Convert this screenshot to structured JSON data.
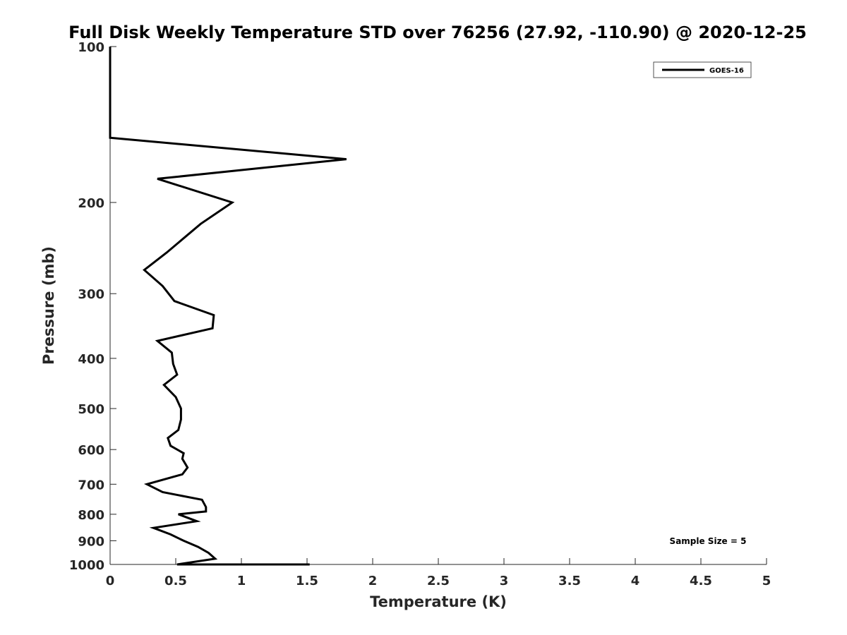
{
  "chart_data": {
    "type": "line",
    "title": "Full Disk Weekly Temperature STD over 76256 (27.92, -110.90) @ 2020-12-25",
    "xlabel": "Temperature (K)",
    "ylabel": "Pressure (mb)",
    "xlim": [
      0,
      5
    ],
    "ylim": [
      100,
      1000
    ],
    "y_scale": "log",
    "y_reversed": true,
    "x_ticks": [
      "0",
      "0.5",
      "1",
      "1.5",
      "2",
      "2.5",
      "3",
      "3.5",
      "4",
      "4.5",
      "5"
    ],
    "y_ticks": [
      "100",
      "200",
      "300",
      "400",
      "500",
      "600",
      "700",
      "800",
      "900",
      "1000"
    ],
    "grid": false,
    "legend_position": "top-right",
    "annotation": "Sample Size = 5",
    "series": [
      {
        "name": "GOES-16",
        "color": "#000000",
        "x": [
          0.0,
          0.0,
          0.0,
          1.8,
          0.36,
          0.93,
          0.69,
          0.43,
          0.26,
          0.4,
          0.49,
          0.79,
          0.78,
          0.36,
          0.47,
          0.48,
          0.51,
          0.41,
          0.5,
          0.54,
          0.54,
          0.52,
          0.44,
          0.46,
          0.56,
          0.55,
          0.59,
          0.55,
          0.28,
          0.4,
          0.7,
          0.73,
          0.73,
          0.52,
          0.66,
          0.33,
          0.46,
          0.56,
          0.67,
          0.75,
          0.8,
          0.51,
          1.22,
          1.52
        ],
        "y": [
          100,
          120,
          150,
          165,
          180,
          200,
          220,
          250,
          270,
          290,
          310,
          330,
          350,
          370,
          390,
          410,
          430,
          450,
          475,
          500,
          525,
          550,
          570,
          590,
          610,
          625,
          650,
          670,
          700,
          725,
          750,
          775,
          790,
          800,
          825,
          850,
          875,
          900,
          925,
          950,
          975,
          1000,
          1013,
          1025
        ]
      }
    ]
  }
}
